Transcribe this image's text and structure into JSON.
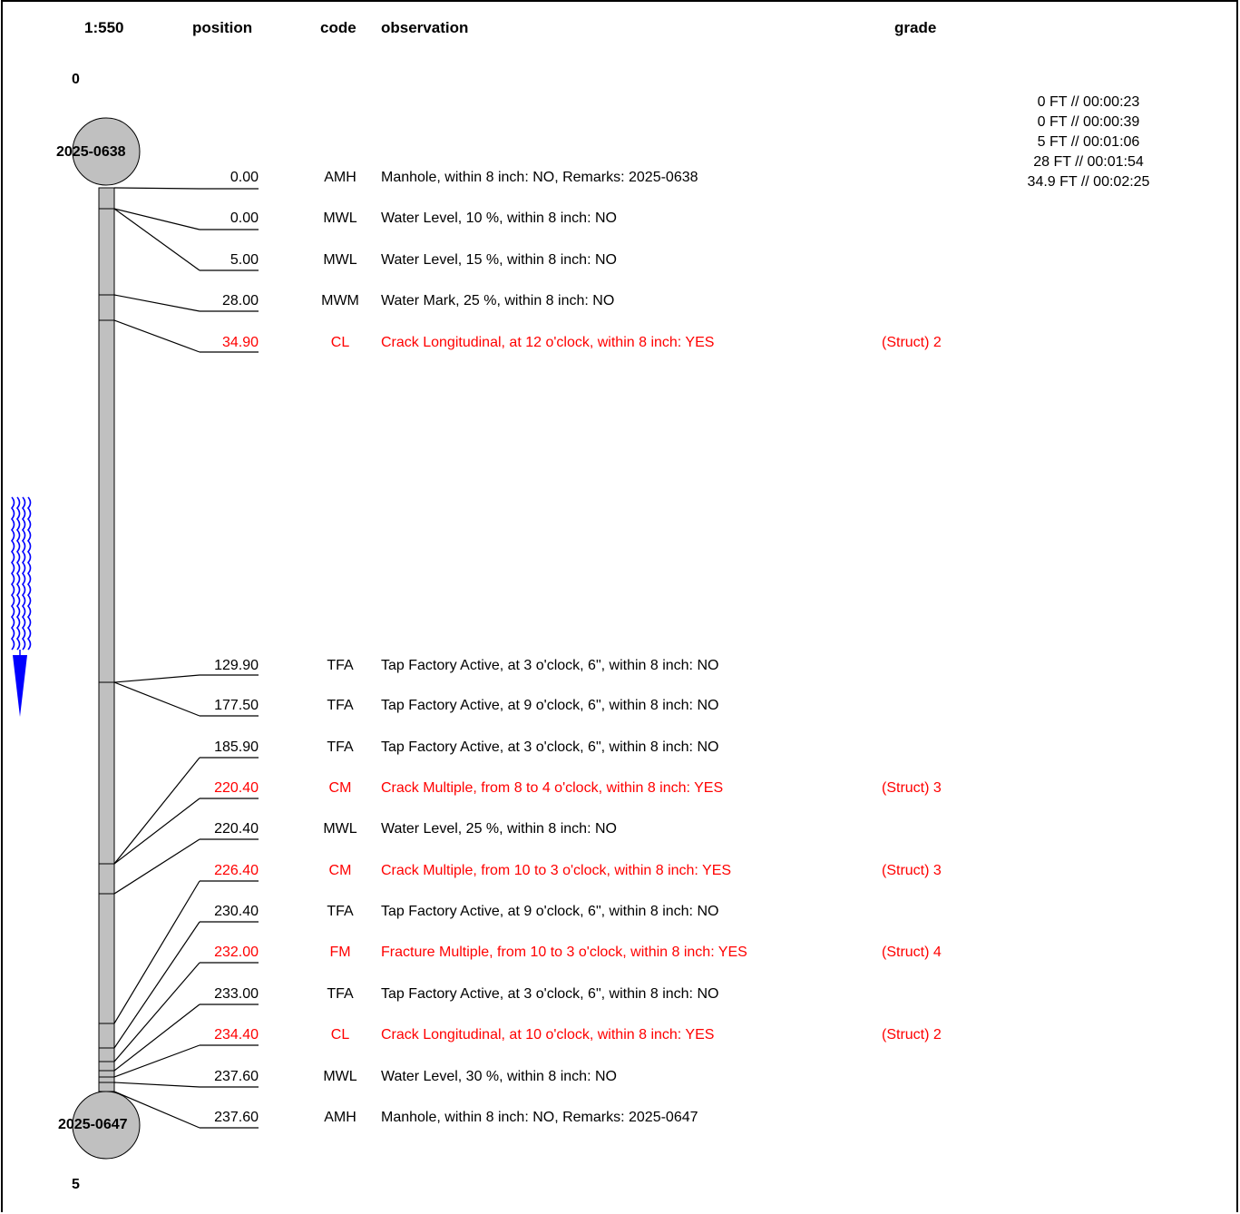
{
  "header": {
    "scale": "1:550",
    "position": "position",
    "code": "code",
    "observation": "observation",
    "grade": "grade"
  },
  "start_index": "0",
  "end_index": "5",
  "upstream_manhole": "2025-0638",
  "downstream_manhole": "2025-0647",
  "timestamps": [
    "0 FT // 00:00:23",
    "0 FT // 00:00:39",
    "5 FT // 00:01:06",
    "28 FT // 00:01:54",
    "34.9 FT // 00:02:25"
  ],
  "colors": {
    "defect": "#ff0000",
    "normal": "#000000",
    "pipe": "#c0c0c0",
    "flow": "#0000ff"
  },
  "observations": [
    {
      "position": "0.00",
      "code": "AMH",
      "text": "Manhole, within 8 inch: NO, Remarks: 2025-0638",
      "grade": "",
      "defect": false
    },
    {
      "position": "0.00",
      "code": "MWL",
      "text": "Water Level, 10 %, within 8 inch: NO",
      "grade": "",
      "defect": false
    },
    {
      "position": "5.00",
      "code": "MWL",
      "text": "Water Level, 15 %, within 8 inch: NO",
      "grade": "",
      "defect": false
    },
    {
      "position": "28.00",
      "code": "MWM",
      "text": "Water Mark, 25 %, within 8 inch: NO",
      "grade": "",
      "defect": false
    },
    {
      "position": "34.90",
      "code": "CL",
      "text": "Crack Longitudinal, at 12 o'clock, within 8 inch: YES",
      "grade": "(Struct) 2",
      "defect": true
    },
    {
      "position": "129.90",
      "code": "TFA",
      "text": "Tap Factory Active, at 3 o'clock, 6\", within 8 inch: NO",
      "grade": "",
      "defect": false
    },
    {
      "position": "177.50",
      "code": "TFA",
      "text": "Tap Factory Active, at 9 o'clock, 6\", within 8 inch: NO",
      "grade": "",
      "defect": false
    },
    {
      "position": "185.90",
      "code": "TFA",
      "text": "Tap Factory Active, at 3 o'clock, 6\", within 8 inch: NO",
      "grade": "",
      "defect": false
    },
    {
      "position": "220.40",
      "code": "CM",
      "text": "Crack Multiple, from 8 to 4 o'clock, within 8 inch: YES",
      "grade": "(Struct) 3",
      "defect": true
    },
    {
      "position": "220.40",
      "code": "MWL",
      "text": "Water Level, 25 %, within 8 inch: NO",
      "grade": "",
      "defect": false
    },
    {
      "position": "226.40",
      "code": "CM",
      "text": "Crack Multiple, from 10 to 3 o'clock, within 8 inch: YES",
      "grade": "(Struct) 3",
      "defect": true
    },
    {
      "position": "230.40",
      "code": "TFA",
      "text": "Tap Factory Active, at 9 o'clock, 6\", within 8 inch: NO",
      "grade": "",
      "defect": false
    },
    {
      "position": "232.00",
      "code": "FM",
      "text": "Fracture Multiple, from 10 to 3 o'clock, within 8 inch: YES",
      "grade": "(Struct) 4",
      "defect": true
    },
    {
      "position": "233.00",
      "code": "TFA",
      "text": "Tap Factory Active, at 3 o'clock, 6\", within 8 inch: NO",
      "grade": "",
      "defect": false
    },
    {
      "position": "234.40",
      "code": "CL",
      "text": "Crack Longitudinal, at 10 o'clock, within 8 inch: YES",
      "grade": "(Struct) 2",
      "defect": true
    },
    {
      "position": "237.60",
      "code": "MWL",
      "text": "Water Level, 30 %, within 8 inch: NO",
      "grade": "",
      "defect": false
    },
    {
      "position": "237.60",
      "code": "AMH",
      "text": "Manhole, within 8 inch: NO, Remarks: 2025-0647",
      "grade": "",
      "defect": false
    }
  ]
}
